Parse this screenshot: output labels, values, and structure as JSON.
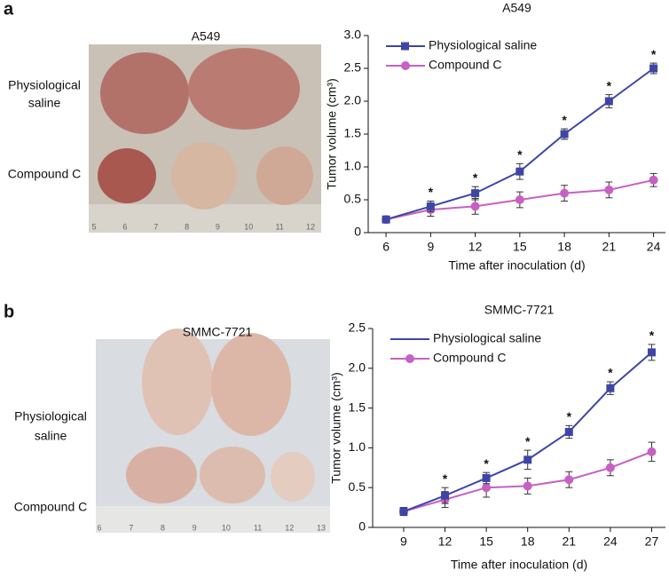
{
  "panels": [
    {
      "label": "a",
      "photo": {
        "title": "A549",
        "row_labels": [
          [
            "Physiological",
            "saline"
          ],
          [
            "Compound C"
          ]
        ],
        "ruler": [
          "5",
          "6",
          "7",
          "8",
          "9",
          "10",
          "11",
          "12"
        ]
      }
    },
    {
      "label": "b",
      "photo": {
        "title": "SMMC-7721",
        "row_labels": [
          [
            "Physiological",
            "saline"
          ],
          [
            "Compound C"
          ]
        ],
        "ruler": [
          "6",
          "7",
          "8",
          "9",
          "10",
          "11",
          "12",
          "13"
        ]
      }
    }
  ],
  "chart_data": [
    {
      "type": "line",
      "title": "A549",
      "x_label": "Time after inoculation (d)",
      "y_label": "Tumor volume (cm³)",
      "x": [
        6,
        9,
        12,
        15,
        18,
        21,
        24
      ],
      "xlim": [
        4.8,
        24.8
      ],
      "xticks": [
        6,
        9,
        12,
        15,
        18,
        21,
        24
      ],
      "ylim": [
        0,
        3
      ],
      "yticks": [
        0,
        0.5,
        {
          "value": 1,
          "label": "1.0"
        },
        1.5,
        {
          "value": 2,
          "label": "2.0"
        },
        2.5,
        {
          "value": 3,
          "label": "3.0"
        }
      ],
      "legend": "upper left",
      "series": [
        {
          "name": "Physiological saline",
          "color": "#3d46a6",
          "marker": "square",
          "values": [
            0.2,
            0.4,
            0.6,
            0.93,
            1.5,
            2.0,
            2.5
          ],
          "errors": [
            0.05,
            0.08,
            0.1,
            0.12,
            0.08,
            0.1,
            0.08
          ]
        },
        {
          "name": "Compound C",
          "color": "#c660c4",
          "marker": "circle",
          "values": [
            0.2,
            0.35,
            0.4,
            0.5,
            0.6,
            0.65,
            0.8
          ],
          "errors": [
            0.05,
            0.1,
            0.12,
            0.12,
            0.12,
            0.12,
            0.1
          ]
        }
      ],
      "significance_labels": [
        null,
        "*",
        "*",
        "*",
        "*",
        "*",
        "*"
      ]
    },
    {
      "type": "line",
      "title": "SMMC-7721",
      "x_label": "Time after inoculation (d)",
      "y_label": "Tumor volume (cm³)",
      "x": [
        9,
        12,
        15,
        18,
        21,
        24,
        27
      ],
      "xlim": [
        6.75,
        28
      ],
      "xticks": [
        9,
        12,
        15,
        18,
        21,
        24,
        27
      ],
      "ylim": [
        0,
        2.5
      ],
      "yticks": [
        0,
        0.5,
        {
          "value": 1,
          "label": "1.0"
        },
        1.5,
        {
          "value": 2,
          "label": "2.0"
        },
        2.5
      ],
      "legend": "upper left",
      "series": [
        {
          "name": "Physiological saline",
          "color": "#3d46a6",
          "marker": "square",
          "legend_marker": false,
          "values": [
            0.2,
            0.4,
            0.62,
            0.85,
            1.2,
            1.75,
            2.2
          ],
          "errors": [
            0.05,
            0.1,
            0.07,
            0.12,
            0.08,
            0.08,
            0.1
          ]
        },
        {
          "name": "Compound C",
          "color": "#c660c4",
          "marker": "circle",
          "values": [
            0.2,
            0.35,
            0.5,
            0.52,
            0.6,
            0.75,
            0.95
          ],
          "errors": [
            0.05,
            0.1,
            0.12,
            0.1,
            0.1,
            0.1,
            0.12
          ]
        }
      ],
      "significance_labels": [
        null,
        "*",
        "*",
        "*",
        "*",
        "*",
        "*"
      ]
    }
  ]
}
